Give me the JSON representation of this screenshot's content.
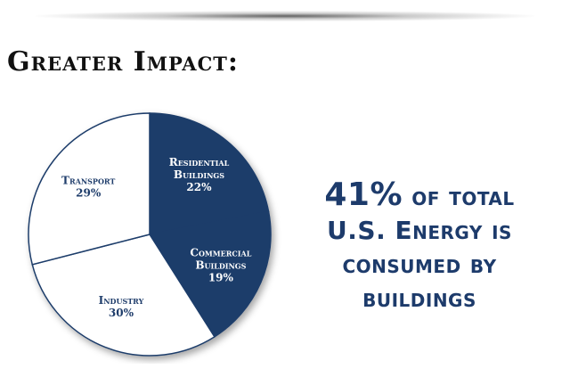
{
  "slide": {
    "title": "Greater Impact:",
    "statement": {
      "highlight": "41%",
      "line1_rest": "of total",
      "line2": "U.S. Energy is",
      "line3": "consumed by",
      "line4": "buildings"
    }
  },
  "chart_data": {
    "type": "pie",
    "title": "",
    "slices": [
      {
        "label": "Residential Buildings",
        "label_lines": [
          "Residential",
          "Buildings"
        ],
        "value": 22,
        "value_label": "22%",
        "color": "#1f3d6b",
        "text_color": "#ffffff"
      },
      {
        "label": "Commercial Buildings",
        "label_lines": [
          "Commercial",
          "Buildings"
        ],
        "value": 19,
        "value_label": "19%",
        "color": "#1f3d6b",
        "text_color": "#ffffff"
      },
      {
        "label": "Industry",
        "label_lines": [
          "Industry"
        ],
        "value": 30,
        "value_label": "30%",
        "color": "#ffffff",
        "text_color": "#1f3d6b"
      },
      {
        "label": "Transport",
        "label_lines": [
          "Transport"
        ],
        "value": 29,
        "value_label": "29%",
        "color": "#ffffff",
        "text_color": "#1f3d6b"
      }
    ]
  }
}
